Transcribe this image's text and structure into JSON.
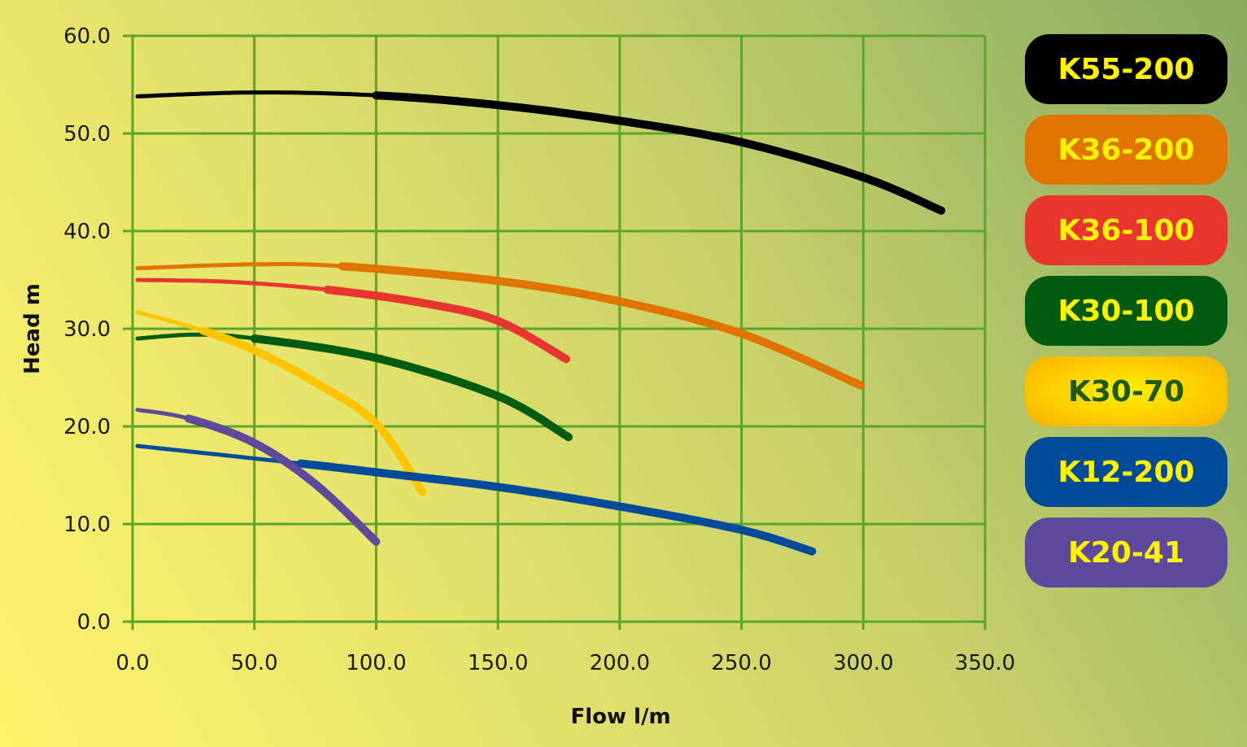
{
  "chart_data": {
    "type": "line",
    "xlabel": "Flow l/m",
    "ylabel": "Head m",
    "xlim": [
      0,
      350
    ],
    "ylim": [
      0,
      60
    ],
    "x_ticks": [
      "0.0",
      "50.0",
      "100.0",
      "150.0",
      "200.0",
      "250.0",
      "300.0",
      "350.0"
    ],
    "y_ticks": [
      "0.0",
      "10.0",
      "20.0",
      "30.0",
      "40.0",
      "50.0",
      "60.0"
    ],
    "grid": true,
    "grid_color": "#5aa52a",
    "legend_position": "right",
    "series": [
      {
        "name": "K55-200",
        "color": "#000000",
        "text_color": "#fff200",
        "thick_from": 100,
        "points": [
          [
            2,
            53.8
          ],
          [
            50,
            54.2
          ],
          [
            100,
            53.9
          ],
          [
            150,
            52.9
          ],
          [
            200,
            51.3
          ],
          [
            250,
            49.1
          ],
          [
            300,
            45.5
          ],
          [
            332,
            42.1
          ]
        ]
      },
      {
        "name": "K36-200",
        "color": "#e07400",
        "text_color": "#fff200",
        "thick_from": 86,
        "points": [
          [
            2,
            36.2
          ],
          [
            50,
            36.6
          ],
          [
            86,
            36.4
          ],
          [
            150,
            34.9
          ],
          [
            200,
            32.8
          ],
          [
            250,
            29.5
          ],
          [
            299,
            24.2
          ]
        ]
      },
      {
        "name": "K36-100",
        "color": "#e83530",
        "text_color": "#fff200",
        "thick_from": 80,
        "points": [
          [
            2,
            35.0
          ],
          [
            40,
            34.8
          ],
          [
            80,
            34.0
          ],
          [
            120,
            32.6
          ],
          [
            150,
            30.8
          ],
          [
            178,
            26.9
          ]
        ]
      },
      {
        "name": "K30-100",
        "color": "#005a10",
        "text_color": "#fff200",
        "thick_from": 50,
        "points": [
          [
            2,
            29.0
          ],
          [
            26,
            29.4
          ],
          [
            50,
            29.0
          ],
          [
            100,
            27.0
          ],
          [
            150,
            23.1
          ],
          [
            179,
            18.9
          ]
        ]
      },
      {
        "name": "K30-70",
        "color": "#ffc400",
        "text_color": "#1e5a10",
        "thick_from": 29,
        "points": [
          [
            2,
            31.7
          ],
          [
            29,
            29.8
          ],
          [
            50,
            27.8
          ],
          [
            75,
            24.5
          ],
          [
            100,
            20.3
          ],
          [
            119,
            13.3
          ]
        ]
      },
      {
        "name": "K12-200",
        "color": "#004a9a",
        "text_color": "#fff200",
        "thick_from": 69,
        "points": [
          [
            2,
            18.0
          ],
          [
            69,
            16.2
          ],
          [
            100,
            15.3
          ],
          [
            150,
            13.8
          ],
          [
            200,
            11.8
          ],
          [
            250,
            9.4
          ],
          [
            279,
            7.2
          ]
        ]
      },
      {
        "name": "K20-41",
        "color": "#5e4a9c",
        "text_color": "#fff200",
        "thick_from": 23,
        "points": [
          [
            2,
            21.7
          ],
          [
            23,
            20.8
          ],
          [
            50,
            18.3
          ],
          [
            75,
            14.1
          ],
          [
            100,
            8.2
          ]
        ]
      }
    ]
  }
}
